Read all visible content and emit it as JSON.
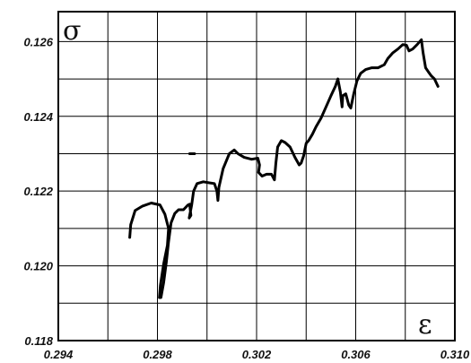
{
  "chart_data": {
    "type": "line",
    "title": "",
    "xlabel": "ε",
    "ylabel": "σ",
    "xlim": [
      0.294,
      0.31
    ],
    "ylim": [
      0.118,
      0.1268
    ],
    "grid": true,
    "x_ticks": [
      0.294,
      0.296,
      0.298,
      0.3,
      0.302,
      0.304,
      0.306,
      0.308,
      0.31
    ],
    "x_tick_labels": [
      "0.294",
      "",
      "0.298",
      "",
      "0.302",
      "",
      "0.306",
      "",
      "0.310"
    ],
    "y_ticks": [
      0.118,
      0.119,
      0.12,
      0.121,
      0.122,
      0.123,
      0.124,
      0.125,
      0.126
    ],
    "y_tick_labels": [
      "0.118",
      "",
      "0.120",
      "",
      "0.122",
      "",
      "0.124",
      "",
      "0.126"
    ],
    "series": [
      {
        "color": "#000000",
        "points": [
          [
            0.29688,
            0.12076
          ],
          [
            0.29692,
            0.1211
          ],
          [
            0.2971,
            0.12148
          ],
          [
            0.2974,
            0.1216
          ],
          [
            0.29775,
            0.12168
          ],
          [
            0.2981,
            0.12163
          ],
          [
            0.2983,
            0.12138
          ],
          [
            0.29845,
            0.121
          ],
          [
            0.2984,
            0.12055
          ],
          [
            0.29825,
            0.12005
          ],
          [
            0.29812,
            0.11948
          ],
          [
            0.29808,
            0.11915
          ],
          [
            0.29814,
            0.11915
          ],
          [
            0.29825,
            0.11955
          ],
          [
            0.29836,
            0.1201
          ],
          [
            0.29845,
            0.12065
          ],
          [
            0.29855,
            0.12115
          ],
          [
            0.2987,
            0.1214
          ],
          [
            0.29885,
            0.1215
          ],
          [
            0.29905,
            0.1215
          ],
          [
            0.29922,
            0.12162
          ],
          [
            0.2993,
            0.12165
          ],
          [
            0.29935,
            0.12135
          ],
          [
            0.29928,
            0.12128
          ],
          [
            0.29938,
            0.12162
          ],
          [
            0.29946,
            0.122
          ],
          [
            0.2996,
            0.1222
          ],
          [
            0.29985,
            0.12225
          ],
          [
            0.3001,
            0.12222
          ],
          [
            0.3003,
            0.1222
          ],
          [
            0.3004,
            0.122
          ],
          [
            0.30044,
            0.12175
          ],
          [
            0.30048,
            0.1221
          ],
          [
            0.30065,
            0.1226
          ],
          [
            0.3009,
            0.123
          ],
          [
            0.3011,
            0.1231
          ],
          [
            0.30125,
            0.123
          ],
          [
            0.3015,
            0.1229
          ],
          [
            0.3018,
            0.12285
          ],
          [
            0.30205,
            0.12288
          ],
          [
            0.30212,
            0.1227
          ],
          [
            0.30208,
            0.1225
          ],
          [
            0.30222,
            0.1224
          ],
          [
            0.3024,
            0.12245
          ],
          [
            0.3026,
            0.12245
          ],
          [
            0.30272,
            0.1223
          ],
          [
            0.30278,
            0.12275
          ],
          [
            0.30285,
            0.12318
          ],
          [
            0.303,
            0.12335
          ],
          [
            0.30315,
            0.1233
          ],
          [
            0.30335,
            0.12318
          ],
          [
            0.30355,
            0.1229
          ],
          [
            0.30372,
            0.1227
          ],
          [
            0.3038,
            0.12275
          ],
          [
            0.3039,
            0.12295
          ],
          [
            0.304,
            0.12328
          ],
          [
            0.3041,
            0.12335
          ],
          [
            0.30425,
            0.12352
          ],
          [
            0.3044,
            0.12372
          ],
          [
            0.3046,
            0.12395
          ],
          [
            0.3048,
            0.12425
          ],
          [
            0.305,
            0.12455
          ],
          [
            0.30518,
            0.1248
          ],
          [
            0.30528,
            0.125
          ],
          [
            0.30538,
            0.12465
          ],
          [
            0.30545,
            0.12425
          ],
          [
            0.30548,
            0.12455
          ],
          [
            0.3056,
            0.1246
          ],
          [
            0.30572,
            0.1243
          ],
          [
            0.3058,
            0.12422
          ],
          [
            0.30592,
            0.1246
          ],
          [
            0.30605,
            0.12495
          ],
          [
            0.3062,
            0.12515
          ],
          [
            0.3064,
            0.12525
          ],
          [
            0.30665,
            0.1253
          ],
          [
            0.3069,
            0.1253
          ],
          [
            0.30715,
            0.12538
          ],
          [
            0.3073,
            0.12555
          ],
          [
            0.3075,
            0.1257
          ],
          [
            0.3077,
            0.1258
          ],
          [
            0.3079,
            0.12592
          ],
          [
            0.30805,
            0.1259
          ],
          [
            0.30815,
            0.12575
          ],
          [
            0.3083,
            0.1258
          ],
          [
            0.30848,
            0.12592
          ],
          [
            0.30865,
            0.12605
          ],
          [
            0.30872,
            0.1257
          ],
          [
            0.30882,
            0.1253
          ],
          [
            0.30892,
            0.1252
          ],
          [
            0.30905,
            0.12508
          ],
          [
            0.30918,
            0.125
          ],
          [
            0.30932,
            0.1248
          ]
        ]
      },
      {
        "color": "#000000",
        "points": [
          [
            0.2993,
            0.123
          ],
          [
            0.2995,
            0.123
          ]
        ]
      }
    ]
  }
}
